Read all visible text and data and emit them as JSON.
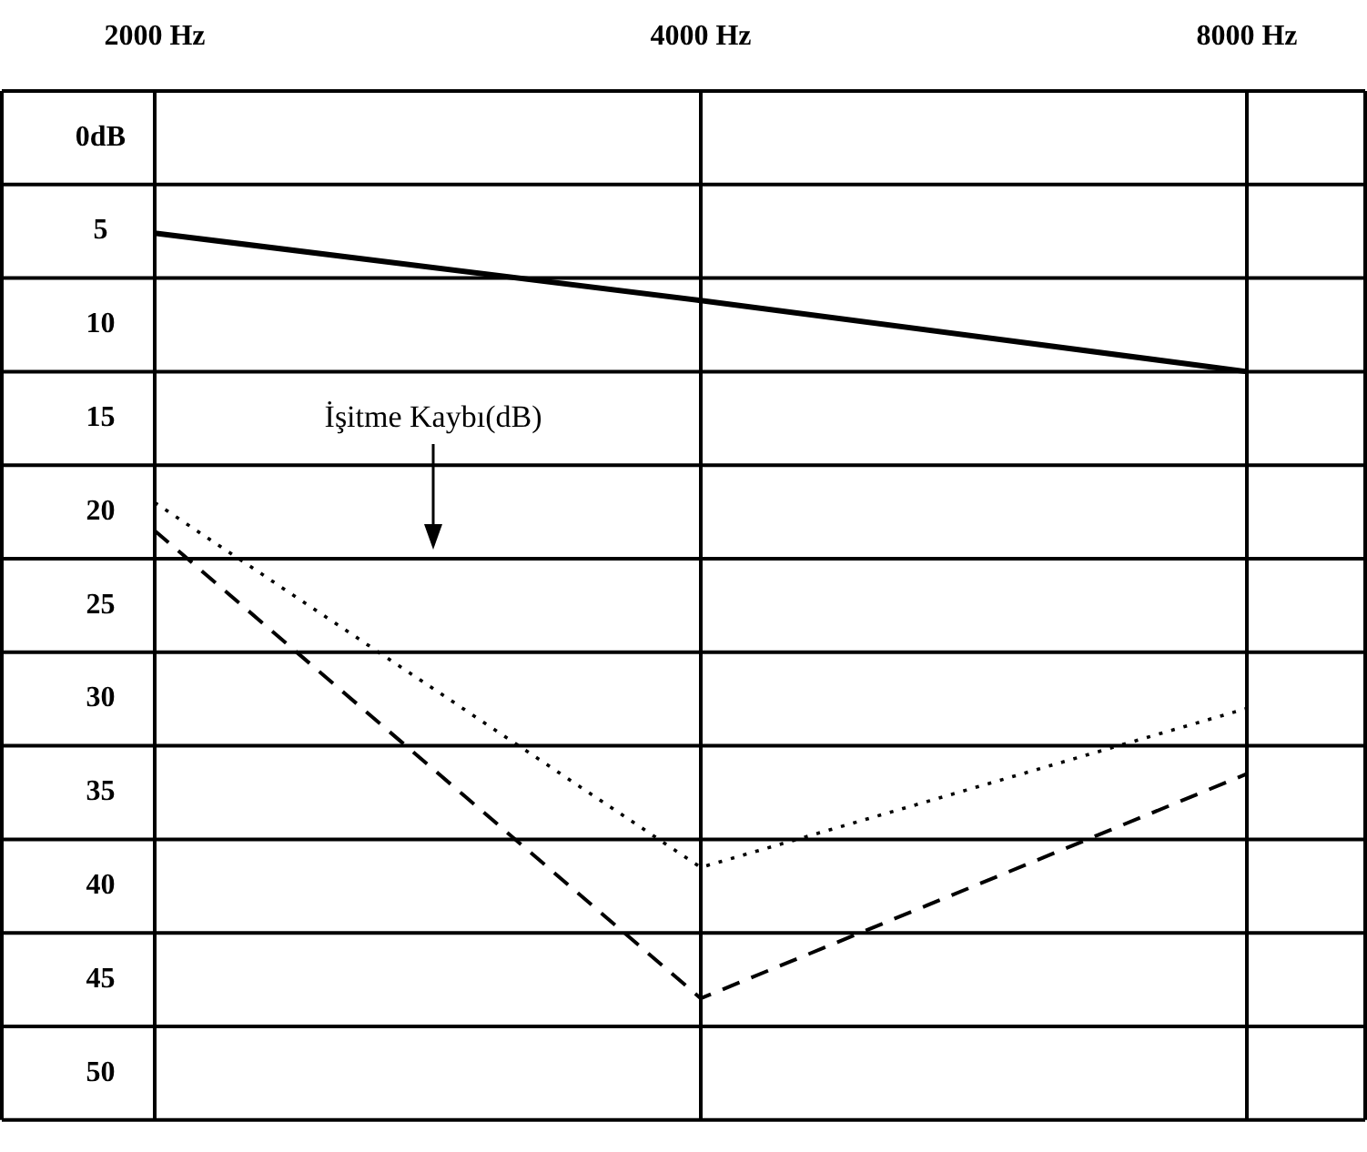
{
  "chart_data": {
    "type": "line",
    "categories": [
      "2000 Hz",
      "4000 Hz",
      "8000 Hz"
    ],
    "ylim": [
      52.5,
      -2.5
    ],
    "yticks": [
      {
        "value": 0,
        "label": "0dB"
      },
      5,
      10,
      15,
      20,
      25,
      30,
      35,
      40,
      45,
      50
    ],
    "series": [
      {
        "color": "#000000",
        "line_style": "solid",
        "values": [
          5.1,
          8.7,
          12.5
        ]
      },
      {
        "color": "#000000",
        "line_style": "dotted",
        "values": [
          19.5,
          39,
          30.5
        ]
      },
      {
        "color": "#000000",
        "line_style": "dashed",
        "values": [
          21,
          46,
          34
        ]
      }
    ],
    "annotations": [
      "İşitme Kaybı(dB)"
    ],
    "grid": true,
    "legend": false,
    "marker": "none"
  }
}
